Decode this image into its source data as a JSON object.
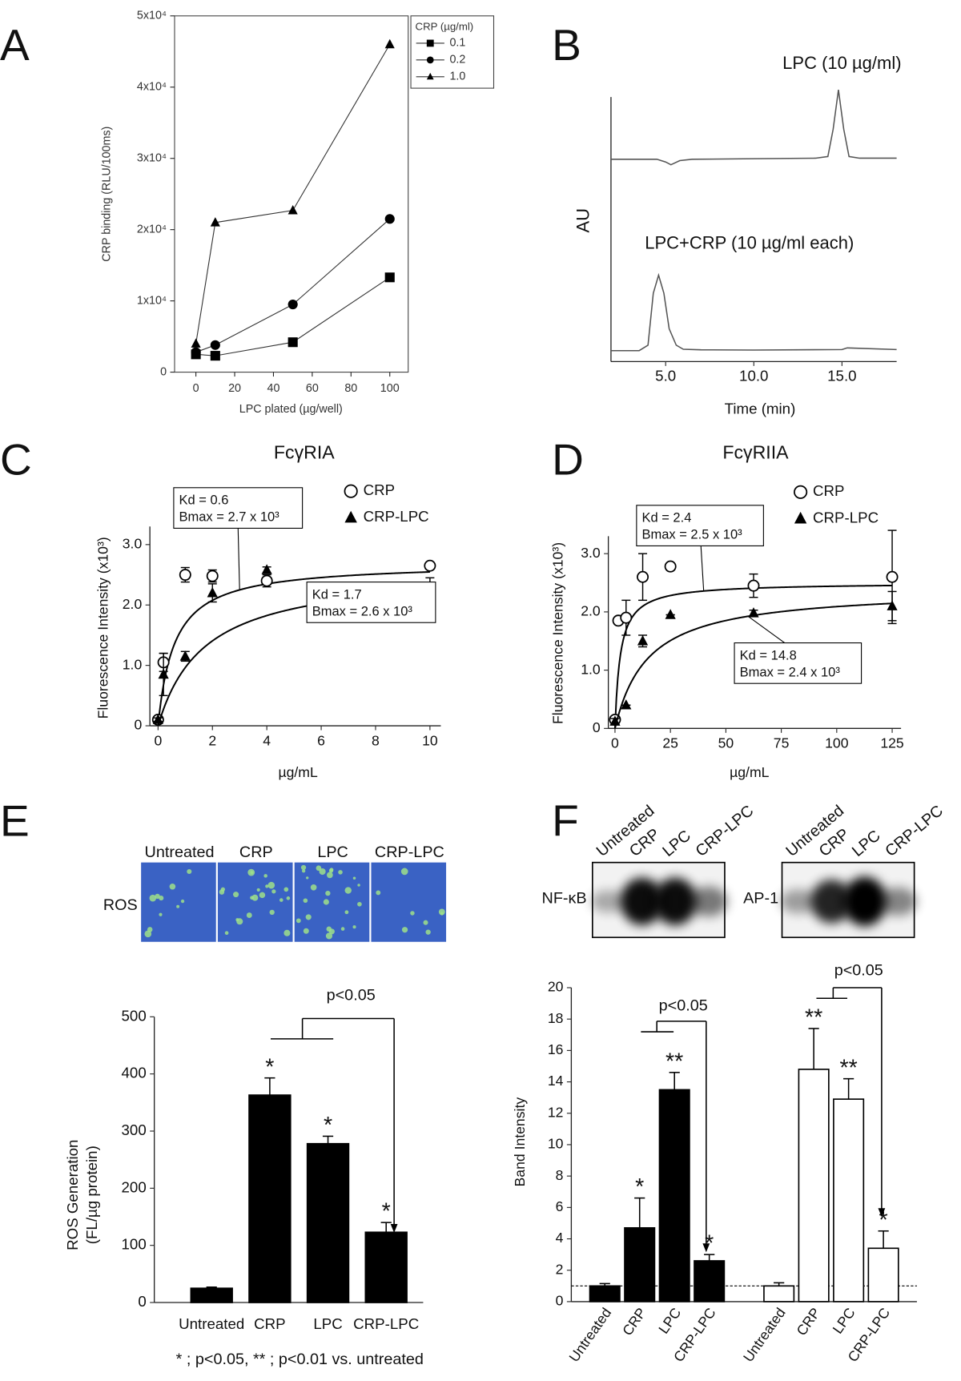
{
  "chart_data": [
    {
      "panel": "A",
      "type": "line",
      "x_label": "LPC plated (µg/well)",
      "y_label": "CRP binding (RLU/100ms)",
      "x": [
        0,
        10,
        50,
        100
      ],
      "xlim": [
        -11,
        109.5
      ],
      "xticks": [
        0,
        20,
        40,
        60,
        80,
        100
      ],
      "ylim": [
        0,
        50000
      ],
      "yticks": [
        0,
        {
          "value": 10000,
          "label": "1x10⁴"
        },
        {
          "value": 20000,
          "label": "2x10⁴"
        },
        {
          "value": 30000,
          "label": "3x10⁴"
        },
        {
          "value": 40000,
          "label": "4x10⁴"
        },
        {
          "value": 50000,
          "label": "5x10⁴"
        }
      ],
      "legend": "upper right",
      "legend_title": "CRP (µg/ml)",
      "series": [
        {
          "name": "0.1",
          "color": "#333333",
          "marker": "square",
          "values": [
            2500,
            2300,
            4200,
            13300
          ]
        },
        {
          "name": "0.2",
          "color": "#333333",
          "marker": "circle",
          "values": [
            2800,
            3800,
            9500,
            21500
          ]
        },
        {
          "name": "1.0",
          "color": "#333333",
          "marker": "triangle",
          "values": [
            4000,
            21000,
            22700,
            46000
          ]
        }
      ]
    },
    {
      "panel": "B",
      "type": "line",
      "x_label": "Time (min)",
      "y_label": "AU",
      "xlim": [
        1.9,
        18.1
      ],
      "xticks": [
        {
          "value": 5,
          "label": "5.0"
        },
        {
          "value": 10,
          "label": "10.0"
        },
        {
          "value": 15,
          "label": "15.0"
        }
      ],
      "ylim": [
        0,
        100
      ],
      "legend": "inline",
      "series": [
        {
          "name": "LPC (10 µg/ml)",
          "color": "#555555",
          "x": [
            1.9,
            4.5,
            5.0,
            5.3,
            5.8,
            6.5,
            10,
            13.5,
            14.2,
            14.5,
            14.8,
            15.1,
            15.4,
            16,
            18.1
          ],
          "values": [
            74,
            74,
            73,
            72,
            73.5,
            74,
            74.2,
            74.4,
            75,
            85,
            99.4,
            85,
            75,
            74.4,
            74.4
          ]
        },
        {
          "name": "LPC+CRP (10 µg/ml each)",
          "color": "#555555",
          "x": [
            1.9,
            3.5,
            4.0,
            4.3,
            4.6,
            4.9,
            5.2,
            5.6,
            6.0,
            7,
            10,
            15,
            15.3,
            18.1
          ],
          "values": [
            4,
            4,
            6,
            25,
            31.6,
            25,
            12,
            6,
            4.5,
            4.3,
            4.2,
            4.4,
            5,
            4.4
          ]
        }
      ]
    },
    {
      "panel": "C",
      "type": "scatter",
      "title": "FcγRIA",
      "x_label": "µg/mL",
      "y_label": "Fluorescence Intensity (x10³)",
      "xlim": [
        -0.3,
        10.4
      ],
      "xticks": [
        0,
        2,
        4,
        6,
        8,
        10
      ],
      "ylim": [
        0,
        3.3
      ],
      "yticks": [
        0,
        {
          "value": 1,
          "label": "1.0"
        },
        {
          "value": 2,
          "label": "2.0"
        },
        {
          "value": 3,
          "label": "3.0"
        }
      ],
      "legend": "upper right",
      "x": [
        0,
        0.2,
        1,
        2,
        4,
        10
      ],
      "series": [
        {
          "name": "CRP",
          "color": "#000000",
          "marker": "circle-open",
          "values": [
            0.1,
            1.05,
            2.5,
            2.48,
            2.4,
            2.65
          ],
          "errors": [
            0.03,
            0.15,
            0.12,
            0.1,
            0.1,
            0.03
          ],
          "kd": 0.6,
          "bmax": 2.7,
          "kd_label": "Kd = 0.6",
          "bmax_label": "Bmax = 2.7 x 10³"
        },
        {
          "name": "CRP-LPC",
          "color": "#000000",
          "marker": "triangle",
          "values": [
            0.1,
            0.85,
            1.15,
            2.2,
            2.58,
            2.3
          ],
          "errors": [
            0.03,
            0.35,
            0.08,
            0.15,
            0.05,
            0.15
          ],
          "kd": 1.7,
          "bmax": 2.6,
          "kd_label": "Kd = 1.7",
          "bmax_label": "Bmax = 2.6 x 10³"
        }
      ]
    },
    {
      "panel": "D",
      "type": "scatter",
      "title": "FcγRIIA",
      "x_label": "µg/mL",
      "y_label": "Fluorescence Intensity (x10³)",
      "xlim": [
        -3,
        129
      ],
      "xticks": [
        0,
        25,
        50,
        75,
        100,
        125
      ],
      "ylim": [
        0,
        3.3
      ],
      "yticks": [
        0,
        {
          "value": 1,
          "label": "1.0"
        },
        {
          "value": 2,
          "label": "2.0"
        },
        {
          "value": 3,
          "label": "3.0"
        }
      ],
      "legend": "upper right",
      "series": [
        {
          "name": "CRP",
          "color": "#000000",
          "marker": "circle-open",
          "x": [
            0,
            1.5,
            5,
            12.5,
            25,
            62.5,
            125
          ],
          "values": [
            0.15,
            1.85,
            1.9,
            2.6,
            2.78,
            2.45,
            2.6
          ],
          "errors": [
            0.05,
            0.05,
            0.3,
            0.4,
            0,
            0.2,
            0.8
          ],
          "kd": 2.4,
          "bmax": 2.5,
          "kd_label": "Kd = 2.4",
          "bmax_label": "Bmax = 2.5 x 10³"
        },
        {
          "name": "CRP-LPC",
          "color": "#000000",
          "marker": "triangle",
          "x": [
            0,
            5,
            12.5,
            25,
            62.5,
            125
          ],
          "values": [
            0.12,
            0.4,
            1.5,
            1.95,
            1.98,
            2.1
          ],
          "errors": [
            0.05,
            0,
            0.1,
            0,
            0.05,
            0.25
          ],
          "kd": 14.8,
          "bmax": 2.4,
          "kd_label": "Kd = 14.8",
          "bmax_label": "Bmax = 2.4 x 10³"
        }
      ]
    },
    {
      "panel": "E",
      "type": "bar",
      "y_label": [
        "ROS Generation",
        "(FL/µg protein)"
      ],
      "categories": [
        "Untreated",
        "CRP",
        "LPC",
        "CRP-LPC"
      ],
      "ylim": [
        0,
        500
      ],
      "yticks": [
        0,
        100,
        200,
        300,
        400,
        500
      ],
      "series": [
        {
          "name": "ROS",
          "color": "#000000",
          "values": [
            25,
            363,
            278,
            123
          ],
          "errors": [
            2,
            30,
            13,
            17
          ],
          "markers": [
            null,
            "*",
            "*",
            "*"
          ]
        }
      ],
      "annotations": [
        "p<0.05"
      ],
      "footnote": "* ; p<0.05, ** ; p<0.01 vs. untreated"
    },
    {
      "panel": "F",
      "type": "bar",
      "y_label": "Band Intensity",
      "categories": [
        "Untreated",
        "CRP",
        "LPC",
        "CRP-LPC"
      ],
      "ylim": [
        0,
        20
      ],
      "yticks": [
        0,
        2,
        4,
        6,
        8,
        10,
        12,
        14,
        16,
        18,
        20
      ],
      "reference_line": 1,
      "series": [
        {
          "name": "NF-κB",
          "color": "#000000",
          "values": [
            1,
            4.7,
            13.5,
            2.6
          ],
          "errors": [
            0.15,
            1.9,
            1.1,
            0.4
          ],
          "markers": [
            null,
            "*",
            "**",
            "*"
          ]
        },
        {
          "name": "AP-1",
          "color": "#ffffff",
          "values": [
            1,
            14.8,
            12.9,
            3.4
          ],
          "errors": [
            0.2,
            2.6,
            1.3,
            1.1
          ],
          "markers": [
            null,
            "**",
            "**",
            "*"
          ]
        }
      ],
      "annotations": [
        "p<0.05",
        "p<0.05"
      ]
    }
  ]
}
